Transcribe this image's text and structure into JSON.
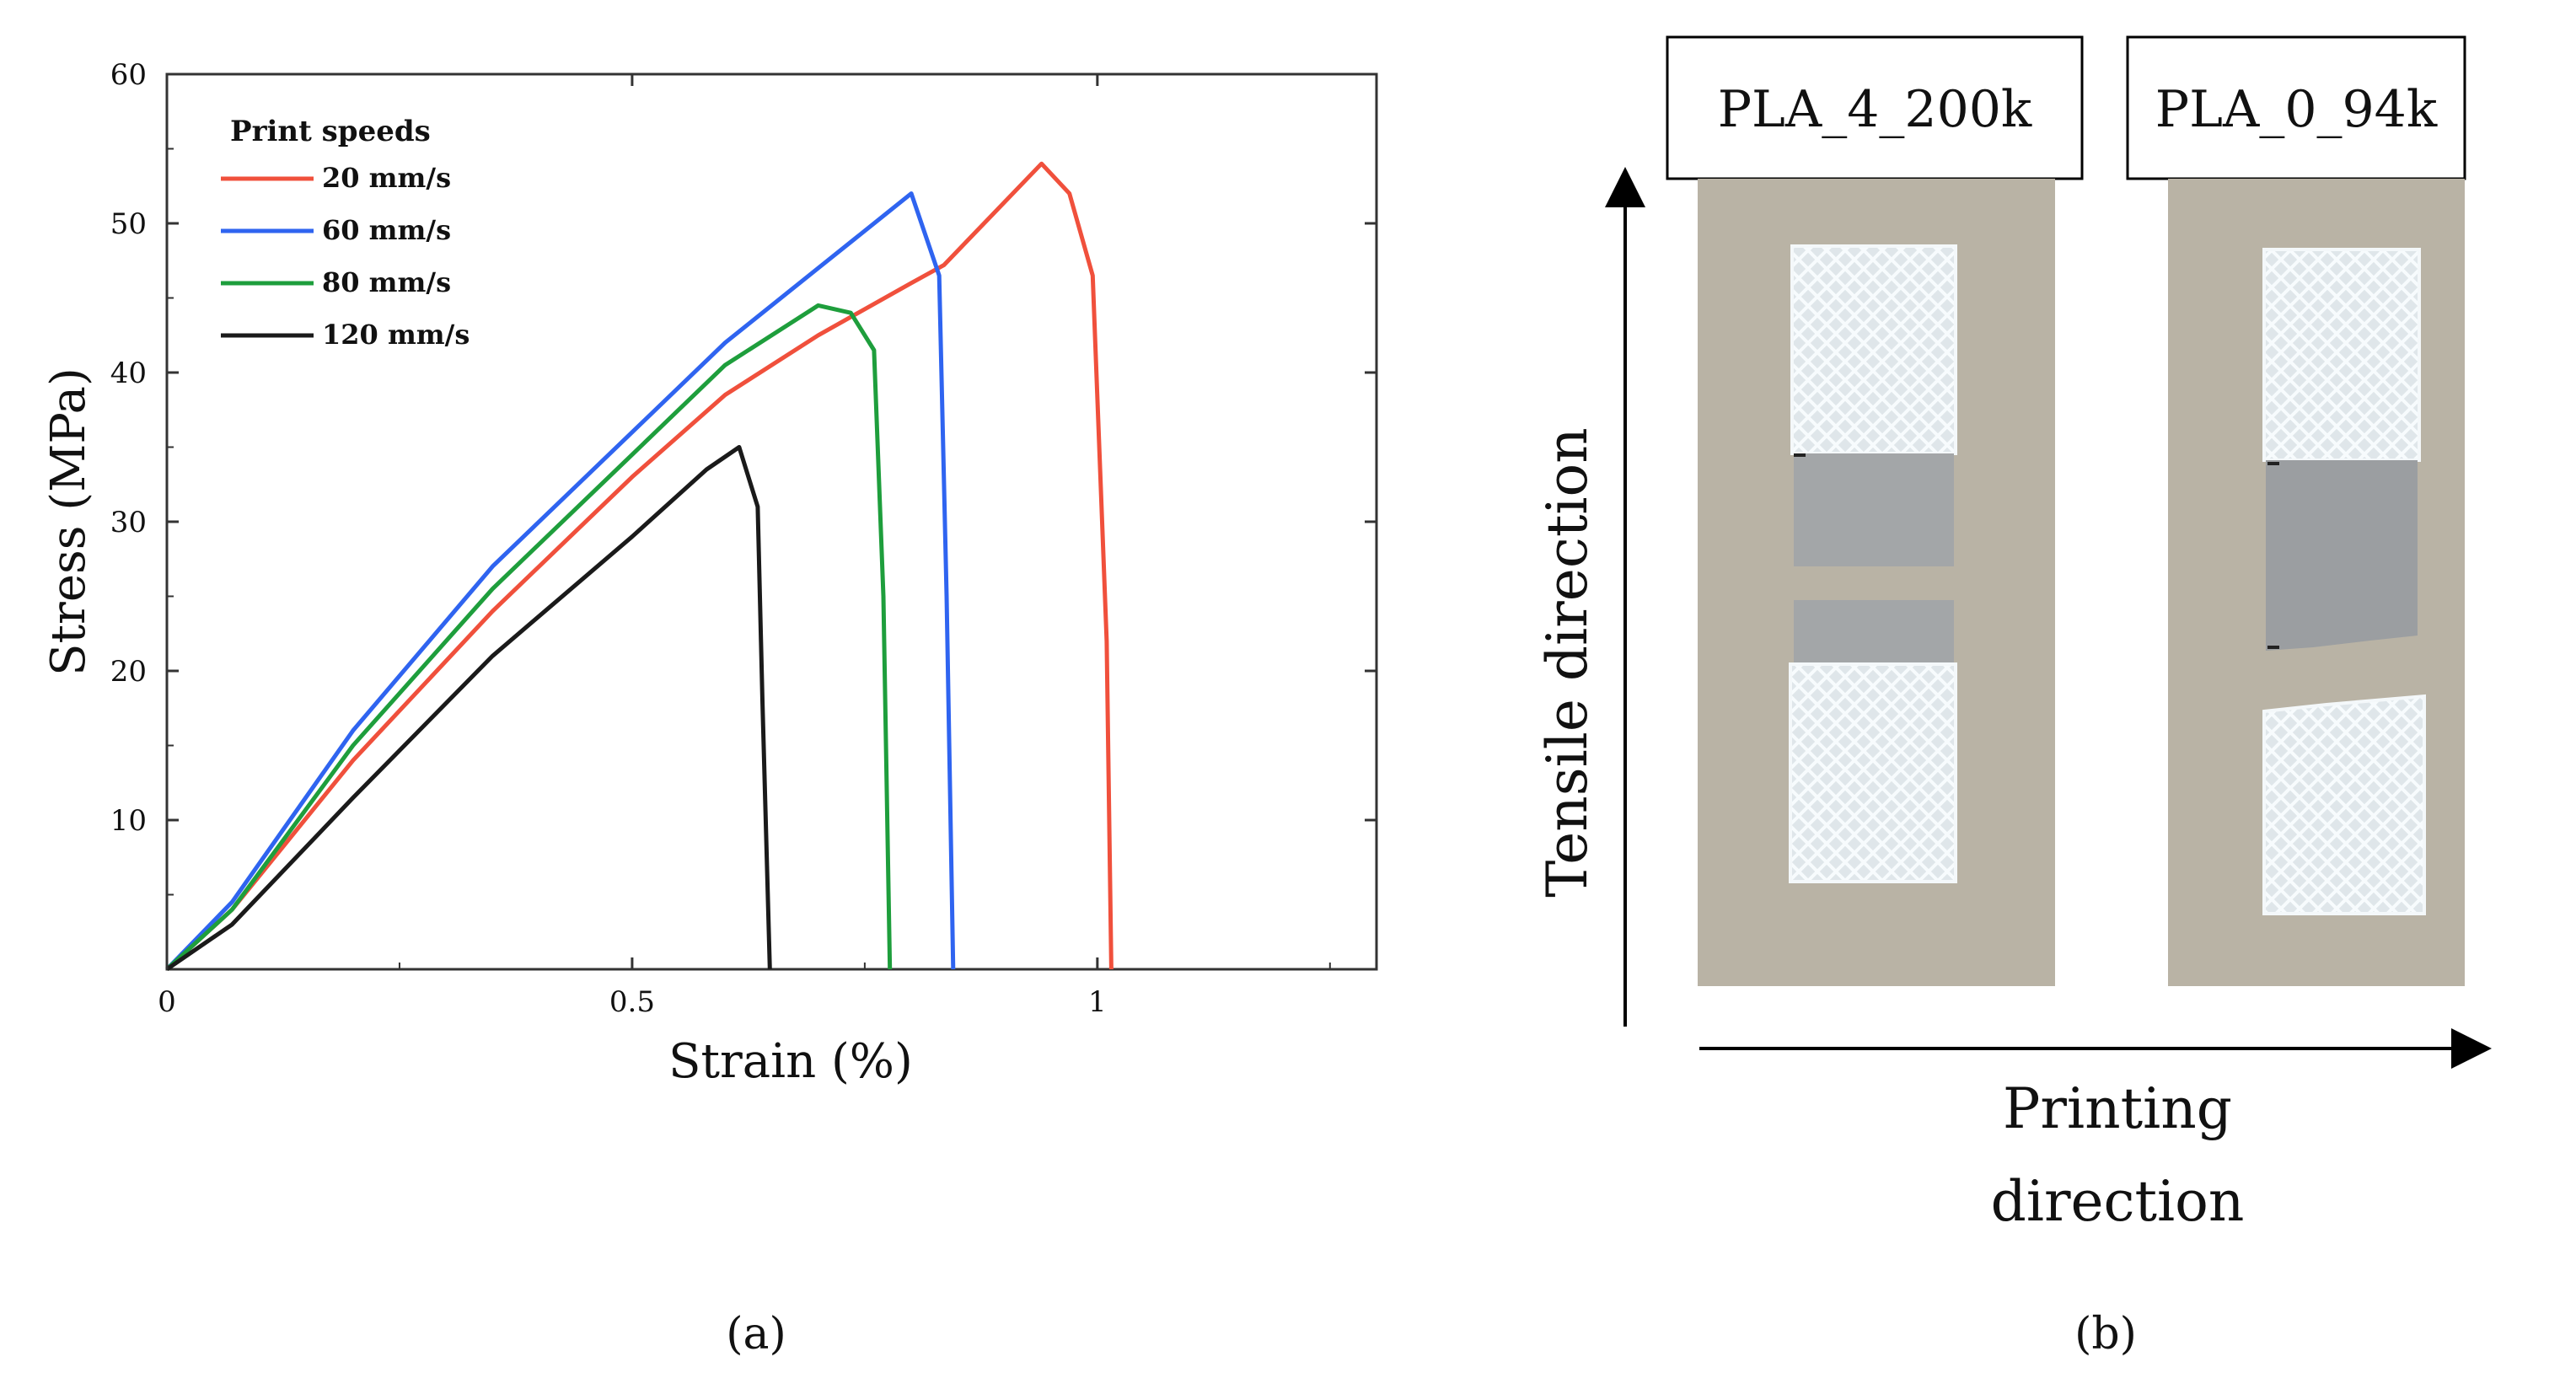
{
  "chart_data": {
    "type": "line",
    "title": "",
    "xlabel": "Strain (%)",
    "ylabel": "Stress (MPa)",
    "xlim": [
      0,
      1.3
    ],
    "ylim": [
      0,
      60
    ],
    "x_ticks": [
      0,
      0.5,
      1
    ],
    "x_tick_labels": [
      "0",
      "0.5",
      "1"
    ],
    "y_ticks": [
      10,
      20,
      30,
      40,
      50,
      60
    ],
    "y_tick_labels": [
      "10",
      "20",
      "30",
      "40",
      "50",
      "60"
    ],
    "legend_title": "Print speeds",
    "legend_position": "top-left",
    "grid": false,
    "series": [
      {
        "name": "20 mm/s",
        "color": "#f0503c",
        "points": [
          [
            0,
            0
          ],
          [
            0.07,
            4
          ],
          [
            0.2,
            14
          ],
          [
            0.35,
            24
          ],
          [
            0.5,
            33
          ],
          [
            0.6,
            38.5
          ],
          [
            0.7,
            42.5
          ],
          [
            0.8,
            46
          ],
          [
            0.835,
            47.2
          ],
          [
            0.94,
            54
          ],
          [
            0.97,
            52
          ],
          [
            0.995,
            46.5
          ],
          [
            1.01,
            22
          ],
          [
            1.015,
            0
          ]
        ]
      },
      {
        "name": "60 mm/s",
        "color": "#2f64f0",
        "points": [
          [
            0,
            0
          ],
          [
            0.07,
            4.5
          ],
          [
            0.2,
            16
          ],
          [
            0.35,
            27
          ],
          [
            0.5,
            36
          ],
          [
            0.6,
            42
          ],
          [
            0.7,
            47
          ],
          [
            0.8,
            52
          ],
          [
            0.83,
            46.5
          ],
          [
            0.838,
            25
          ],
          [
            0.845,
            0
          ]
        ]
      },
      {
        "name": "80 mm/s",
        "color": "#1e9e3c",
        "points": [
          [
            0,
            0
          ],
          [
            0.07,
            4
          ],
          [
            0.2,
            15
          ],
          [
            0.35,
            25.5
          ],
          [
            0.5,
            34.5
          ],
          [
            0.6,
            40.5
          ],
          [
            0.7,
            44.5
          ],
          [
            0.735,
            44
          ],
          [
            0.76,
            41.5
          ],
          [
            0.77,
            25
          ],
          [
            0.777,
            0
          ]
        ]
      },
      {
        "name": "120 mm/s",
        "color": "#1a1a1a",
        "points": [
          [
            0,
            0
          ],
          [
            0.07,
            3
          ],
          [
            0.2,
            11.5
          ],
          [
            0.35,
            21
          ],
          [
            0.5,
            29
          ],
          [
            0.58,
            33.5
          ],
          [
            0.615,
            35
          ],
          [
            0.635,
            31
          ],
          [
            0.64,
            18
          ],
          [
            0.648,
            0
          ]
        ]
      }
    ]
  },
  "panel_a": {
    "caption": "(a)"
  },
  "panel_b": {
    "caption": "(b)",
    "specimen_labels": [
      "PLA_4_200k",
      "PLA_0_94k"
    ],
    "vertical_axis_label": "Tensile direction",
    "horizontal_axis_label_line1": "Printing",
    "horizontal_axis_label_line2": "direction",
    "colors": {
      "background_card": "#b9b3a5",
      "specimen": "#e9eef1",
      "gauge": "#9fa3a6"
    }
  }
}
